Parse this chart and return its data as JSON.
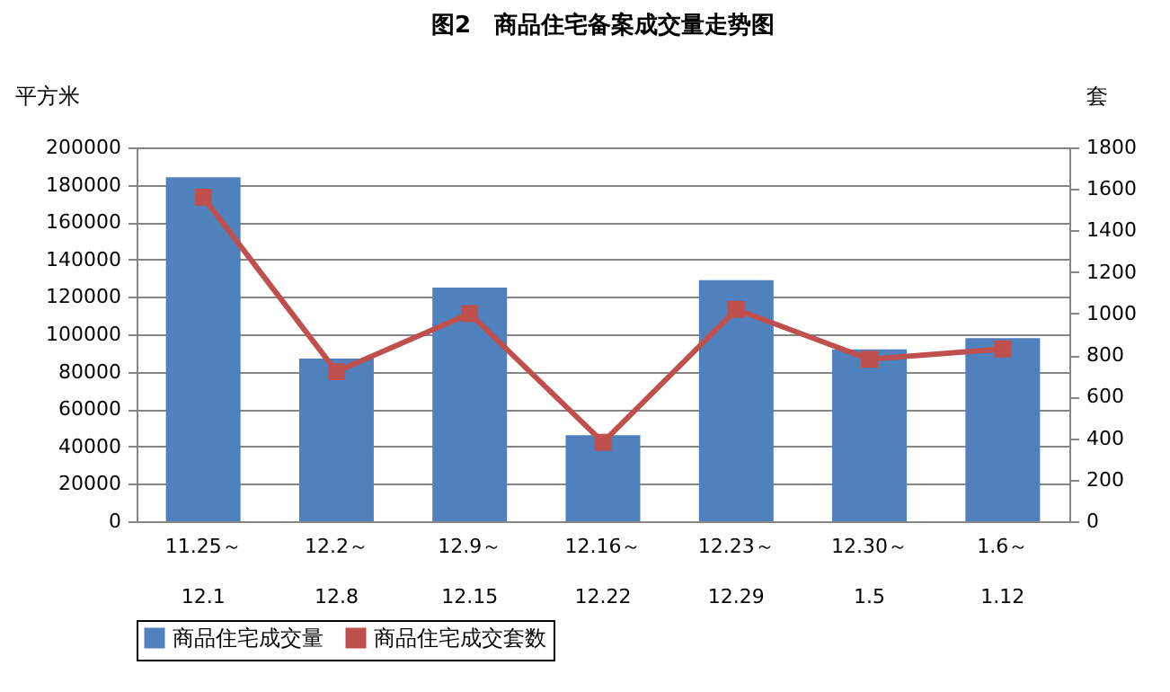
{
  "chart_data": {
    "type": "bar",
    "title": "图2　商品住宅备案成交量走势图",
    "ylabel": "平方米",
    "y2label": "套",
    "categories": [
      "11.25～\n12.1",
      "12.2～\n12.8",
      "12.9～\n12.15",
      "12.16～\n12.22",
      "12.23～\n12.29",
      "12.30～\n1.5",
      "1.6～\n1.12"
    ],
    "series": [
      {
        "name": "商品住宅成交量",
        "color": "#4f81bd",
        "values": [
          184000,
          87000,
          125000,
          46000,
          129000,
          92000,
          98000
        ]
      },
      {
        "name": "商品住宅成交套数",
        "type": "line",
        "axis": "y2",
        "color": "#c0504d",
        "marker": "square",
        "values": [
          1560,
          720,
          1000,
          380,
          1020,
          780,
          830
        ]
      }
    ],
    "ylim": [
      0,
      200000
    ],
    "yticks": [
      0,
      20000,
      40000,
      60000,
      80000,
      100000,
      120000,
      140000,
      160000,
      180000,
      200000
    ],
    "y2lim": [
      0,
      1800
    ],
    "y2ticks": [
      0,
      200,
      400,
      600,
      800,
      1000,
      1200,
      1400,
      1600,
      1800
    ],
    "grid": "y",
    "legend": "bottom"
  }
}
